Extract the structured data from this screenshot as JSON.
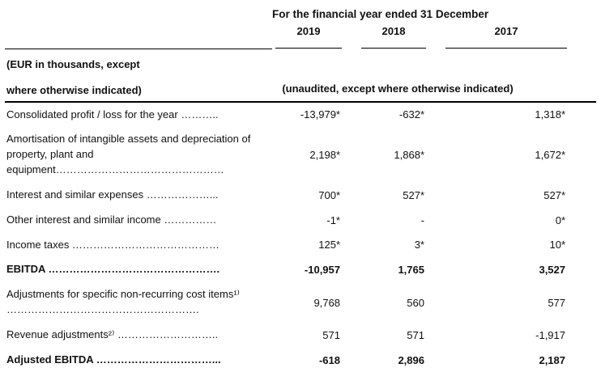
{
  "table": {
    "header": {
      "period_title": "For the financial year ended 31 December",
      "years": [
        "2019",
        "2018",
        "2017"
      ],
      "left_note_line1": "(EUR in thousands, except",
      "left_note_line2": "where otherwise indicated)",
      "unaudited_note": "(unaudited, except where otherwise indicated)"
    },
    "rows": [
      {
        "label": "Consolidated profit / loss for the year ………..",
        "values": [
          "-13,979*",
          "-632*",
          "1,318*"
        ],
        "bold": false
      },
      {
        "label": "Amortisation of intangible assets and depreciation of property, plant and equipment…………………………………………",
        "values": [
          "2,198*",
          "1,868*",
          "1,672*"
        ],
        "bold": false
      },
      {
        "label": "Interest and similar expenses ………………...",
        "values": [
          "700*",
          "527*",
          "527*"
        ],
        "bold": false
      },
      {
        "label": "Other interest and similar income ……………",
        "values": [
          "-1*",
          "-",
          "0*"
        ],
        "bold": false
      },
      {
        "label": "Income taxes ……………………………………",
        "values": [
          "125*",
          "3*",
          "10*"
        ],
        "bold": false
      },
      {
        "label": "EBITDA ………………………………………….",
        "values": [
          "-10,957",
          "1,765",
          "3,527"
        ],
        "bold": true
      },
      {
        "label": "Adjustments for specific non-recurring cost items¹⁾ ……………………………………………….",
        "values": [
          "9,768",
          "560",
          "577"
        ],
        "bold": false
      },
      {
        "label": "Revenue adjustments²⁾ ………………………..",
        "values": [
          "571",
          "571",
          "-1,917"
        ],
        "bold": false
      },
      {
        "label": "Adjusted EBITDA ……………………………...",
        "values": [
          "-618",
          "2,896",
          "2,187"
        ],
        "bold": true
      }
    ]
  }
}
